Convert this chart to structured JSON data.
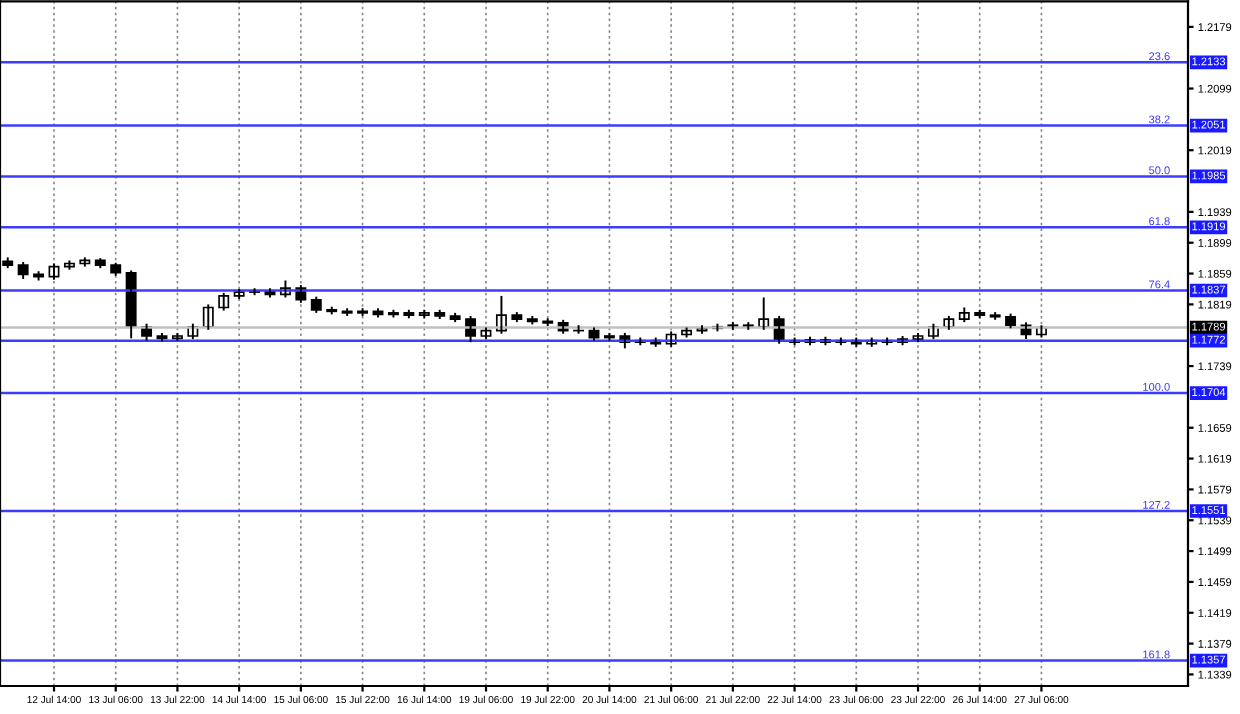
{
  "chart_data": {
    "type": "candlestick",
    "color": "#000000",
    "categories": [
      null,
      null,
      null,
      "12 Jul 14:00",
      null,
      null,
      null,
      "13 Jul 06:00",
      null,
      null,
      null,
      "13 Jul 22:00",
      null,
      null,
      null,
      "14 Jul 14:00",
      null,
      null,
      null,
      "15 Jul 06:00",
      null,
      null,
      null,
      "15 Jul 22:00",
      null,
      null,
      null,
      "16 Jul 14:00",
      null,
      null,
      null,
      "19 Jul 06:00",
      null,
      null,
      null,
      "19 Jul 22:00",
      null,
      null,
      null,
      "20 Jul 14:00",
      null,
      null,
      null,
      "21 Jul 06:00",
      null,
      null,
      null,
      "21 Jul 22:00",
      null,
      null,
      null,
      "22 Jul 14:00",
      null,
      null,
      null,
      "23 Jul 06:00",
      null,
      null,
      null,
      "23 Jul 22:00",
      null,
      null,
      null,
      "26 Jul 14:00",
      null,
      null,
      null,
      "27 Jul 06:00",
      null,
      null,
      null,
      null,
      null,
      null,
      null,
      null,
      null
    ],
    "ohlc": [
      [
        1.1875,
        1.188,
        1.1866,
        1.187
      ],
      [
        1.187,
        1.1874,
        1.1852,
        1.1858
      ],
      [
        1.1858,
        1.1862,
        1.185,
        1.1855
      ],
      [
        1.1855,
        1.1872,
        1.1851,
        1.1868
      ],
      [
        1.1868,
        1.1876,
        1.1864,
        1.1872
      ],
      [
        1.1872,
        1.188,
        1.1868,
        1.1876
      ],
      [
        1.1876,
        1.1879,
        1.1866,
        1.187
      ],
      [
        1.187,
        1.1873,
        1.1856,
        1.186
      ],
      [
        1.186,
        1.1863,
        1.1775,
        1.179
      ],
      [
        1.179,
        1.1794,
        1.1772,
        1.1778
      ],
      [
        1.1778,
        1.1782,
        1.1771,
        1.1775
      ],
      [
        1.1775,
        1.1782,
        1.1772,
        1.1778
      ],
      [
        1.1778,
        1.1794,
        1.1774,
        1.179
      ],
      [
        1.179,
        1.1819,
        1.1786,
        1.1815
      ],
      [
        1.1815,
        1.1834,
        1.1811,
        1.183
      ],
      [
        1.183,
        1.1839,
        1.1826,
        1.1835
      ],
      [
        1.1835,
        1.184,
        1.1831,
        1.1836
      ],
      [
        1.1836,
        1.184,
        1.1828,
        1.1832
      ],
      [
        1.1832,
        1.185,
        1.1828,
        1.184
      ],
      [
        1.184,
        1.1844,
        1.1821,
        1.1825
      ],
      [
        1.1825,
        1.1829,
        1.1808,
        1.1812
      ],
      [
        1.1812,
        1.1816,
        1.1806,
        1.181
      ],
      [
        1.181,
        1.1814,
        1.1804,
        1.1808
      ],
      [
        1.1808,
        1.1814,
        1.1804,
        1.181
      ],
      [
        1.181,
        1.1814,
        1.1802,
        1.1806
      ],
      [
        1.1806,
        1.1812,
        1.1802,
        1.1808
      ],
      [
        1.1808,
        1.1812,
        1.1801,
        1.1805
      ],
      [
        1.1805,
        1.1812,
        1.1801,
        1.1808
      ],
      [
        1.1808,
        1.1812,
        1.18,
        1.1804
      ],
      [
        1.1804,
        1.1808,
        1.1796,
        1.18
      ],
      [
        1.18,
        1.1804,
        1.177,
        1.1778
      ],
      [
        1.1778,
        1.1789,
        1.1774,
        1.1785
      ],
      [
        1.1785,
        1.183,
        1.1781,
        1.1805
      ],
      [
        1.1805,
        1.1809,
        1.1796,
        1.18
      ],
      [
        1.18,
        1.1804,
        1.1793,
        1.1797
      ],
      [
        1.1797,
        1.1801,
        1.1791,
        1.1795
      ],
      [
        1.1795,
        1.1799,
        1.1781,
        1.1785
      ],
      [
        1.1785,
        1.1792,
        1.1781,
        1.1785
      ],
      [
        1.1785,
        1.1789,
        1.1772,
        1.1776
      ],
      [
        1.1776,
        1.1782,
        1.1772,
        1.1778
      ],
      [
        1.1778,
        1.1782,
        1.1762,
        1.177
      ],
      [
        1.177,
        1.1776,
        1.1766,
        1.1772
      ],
      [
        1.1772,
        1.1776,
        1.1764,
        1.1768
      ],
      [
        1.1768,
        1.1784,
        1.1764,
        1.178
      ],
      [
        1.178,
        1.1789,
        1.1776,
        1.1785
      ],
      [
        1.1785,
        1.1792,
        1.1781,
        1.1788
      ],
      [
        1.1788,
        1.1794,
        1.1784,
        1.179
      ],
      [
        1.179,
        1.1796,
        1.1786,
        1.1792
      ],
      [
        1.1792,
        1.1796,
        1.1786,
        1.179
      ],
      [
        1.179,
        1.1828,
        1.1786,
        1.18
      ],
      [
        1.18,
        1.1804,
        1.1768,
        1.1772
      ],
      [
        1.1772,
        1.1776,
        1.1766,
        1.177
      ],
      [
        1.177,
        1.1777,
        1.1766,
        1.1773
      ],
      [
        1.1773,
        1.1777,
        1.1766,
        1.177
      ],
      [
        1.177,
        1.1776,
        1.1766,
        1.1772
      ],
      [
        1.1772,
        1.1776,
        1.1764,
        1.1768
      ],
      [
        1.1768,
        1.1776,
        1.1764,
        1.1772
      ],
      [
        1.1772,
        1.1776,
        1.1766,
        1.177
      ],
      [
        1.177,
        1.1778,
        1.1766,
        1.1774
      ],
      [
        1.1774,
        1.1782,
        1.177,
        1.1778
      ],
      [
        1.1778,
        1.1794,
        1.1774,
        1.179
      ],
      [
        1.179,
        1.1804,
        1.1786,
        1.18
      ],
      [
        1.18,
        1.1815,
        1.1796,
        1.1808
      ],
      [
        1.1808,
        1.1812,
        1.1801,
        1.1805
      ],
      [
        1.1805,
        1.1809,
        1.1799,
        1.1803
      ],
      [
        1.1803,
        1.1807,
        1.1788,
        1.1792
      ],
      [
        1.1792,
        1.1796,
        1.1774,
        1.178
      ],
      [
        1.178,
        1.1792,
        1.1776,
        1.1789
      ],
      null,
      null,
      null,
      null,
      null,
      null,
      null,
      null,
      null
    ],
    "ylim": [
      1.1324,
      1.2212
    ],
    "yticks": [
      1.1339,
      1.1379,
      1.1419,
      1.1459,
      1.1499,
      1.1539,
      1.1579,
      1.1619,
      1.1659,
      1.1739,
      1.1819,
      1.1859,
      1.1899,
      1.1939,
      1.2019,
      1.2099,
      1.2179
    ],
    "ref_lines": [
      {
        "axis": "y",
        "value": 1.2133,
        "label": "1.2133",
        "color": "#3c3cff"
      },
      {
        "axis": "y",
        "value": 1.2051,
        "label": "1.2051",
        "color": "#3c3cff"
      },
      {
        "axis": "y",
        "value": 1.1985,
        "label": "1.1985",
        "color": "#3c3cff"
      },
      {
        "axis": "y",
        "value": 1.1919,
        "label": "1.1919",
        "color": "#3c3cff"
      },
      {
        "axis": "y",
        "value": 1.1837,
        "label": "1.1837",
        "color": "#3c3cff"
      },
      {
        "axis": "y",
        "value": 1.1789,
        "label": "1.1789",
        "color": "#c0c0c0"
      },
      {
        "axis": "y",
        "value": 1.1772,
        "label": "1.1772",
        "color": "#3c3cff"
      },
      {
        "axis": "y",
        "value": 1.1704,
        "label": "1.1704",
        "color": "#3c3cff"
      },
      {
        "axis": "y",
        "value": 1.1551,
        "label": "1.1551",
        "color": "#3c3cff"
      },
      {
        "axis": "y",
        "value": 1.1357,
        "label": "1.1357",
        "color": "#3c3cff"
      }
    ],
    "annotations": [
      {
        "text": "23.6",
        "y": 1.2133
      },
      {
        "text": "38.2",
        "y": 1.2051
      },
      {
        "text": "50.0",
        "y": 1.1985
      },
      {
        "text": "61.8",
        "y": 1.1919
      },
      {
        "text": "76.4",
        "y": 1.1837
      },
      {
        "text": "100.0",
        "y": 1.1704
      },
      {
        "text": "127.2",
        "y": 1.1551
      },
      {
        "text": "161.8",
        "y": 1.1357
      }
    ],
    "grid": "x"
  }
}
